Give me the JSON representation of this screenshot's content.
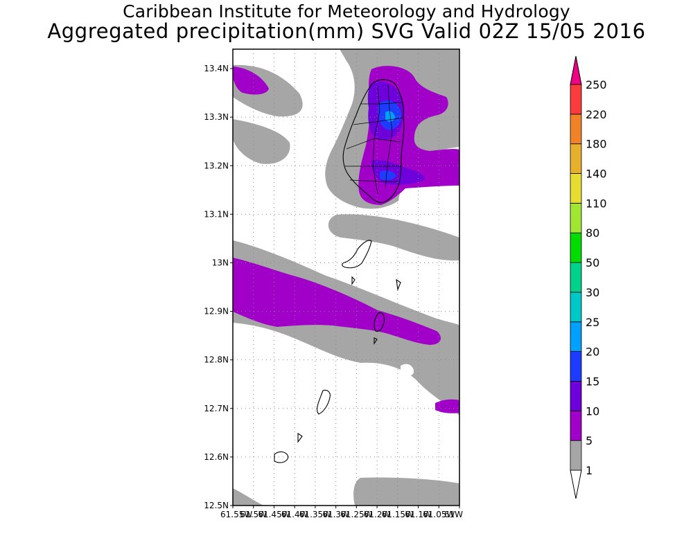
{
  "header": {
    "line1": "Caribbean Institute for Meteorology and Hydrology",
    "line2": "Aggregated precipitation(mm) SVG Valid 02Z 15/05 2016"
  },
  "map": {
    "lat_labels": [
      "13.4N",
      "13.3N",
      "13.2N",
      "13.1N",
      "13N",
      "12.9N",
      "12.8N",
      "12.7N",
      "12.6N",
      "12.5N"
    ],
    "lon_labels": [
      "61.55W",
      "61.5W",
      "61.45W",
      "61.4W",
      "61.35W",
      "61.3W",
      "61.25W",
      "61.2W",
      "61.15W",
      "61.1W",
      "61.05W",
      "61W"
    ],
    "lat_range": [
      12.5,
      13.44
    ],
    "lon_range": [
      -61.55,
      -61.0
    ],
    "grid": true
  },
  "colorbar": {
    "labels": [
      "1",
      "5",
      "10",
      "15",
      "20",
      "25",
      "30",
      "50",
      "80",
      "110",
      "140",
      "180",
      "220",
      "250"
    ],
    "colors": {
      "c1_5": "#a6a6a6",
      "c5_10": "#a000c8",
      "c10_15": "#6e00dc",
      "c15_20": "#1e3cff",
      "c20_25": "#00a0ff",
      "c25_30": "#00c8c8",
      "c30_50": "#00d28c",
      "c50_80": "#00dc00",
      "c80_110": "#a0e632",
      "c110_140": "#e6dc32",
      "c140_180": "#e6af2d",
      "c180_220": "#f08228",
      "c220_250": "#fa3c3c",
      "c250_plus": "#f00082"
    }
  }
}
